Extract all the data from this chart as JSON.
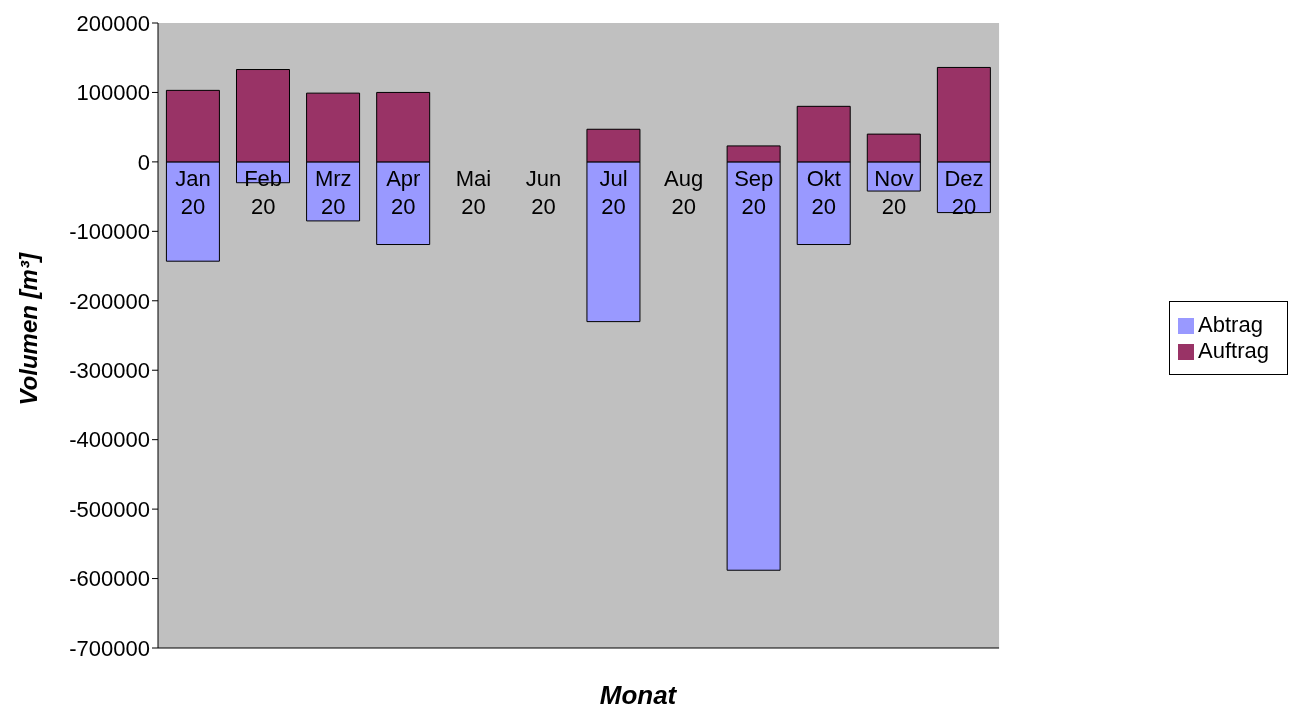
{
  "chart_data": {
    "type": "bar",
    "stacked": true,
    "xlabel": "Monat",
    "ylabel": "Volumen [m³]",
    "categories": [
      "Jan 20",
      "Feb 20",
      "Mrz 20",
      "Apr 20",
      "Mai 20",
      "Jun 20",
      "Jul 20",
      "Aug 20",
      "Sep 20",
      "Okt 20",
      "Nov 20",
      "Dez 20"
    ],
    "series": [
      {
        "name": "Abtrag",
        "color": "#9999ff",
        "values": [
          -143000,
          -30000,
          -85000,
          -119000,
          0,
          0,
          -230000,
          0,
          -588000,
          -119000,
          -42000,
          -73000
        ]
      },
      {
        "name": "Auftrag",
        "color": "#993366",
        "values": [
          103000,
          133000,
          99000,
          100000,
          0,
          0,
          47000,
          0,
          23000,
          80000,
          40000,
          136000
        ]
      }
    ],
    "ylim": [
      -700000,
      200000
    ],
    "yticks": [
      -700000,
      -600000,
      -500000,
      -400000,
      -300000,
      -200000,
      -100000,
      0,
      100000,
      200000
    ],
    "grid": false,
    "legend": "right"
  }
}
